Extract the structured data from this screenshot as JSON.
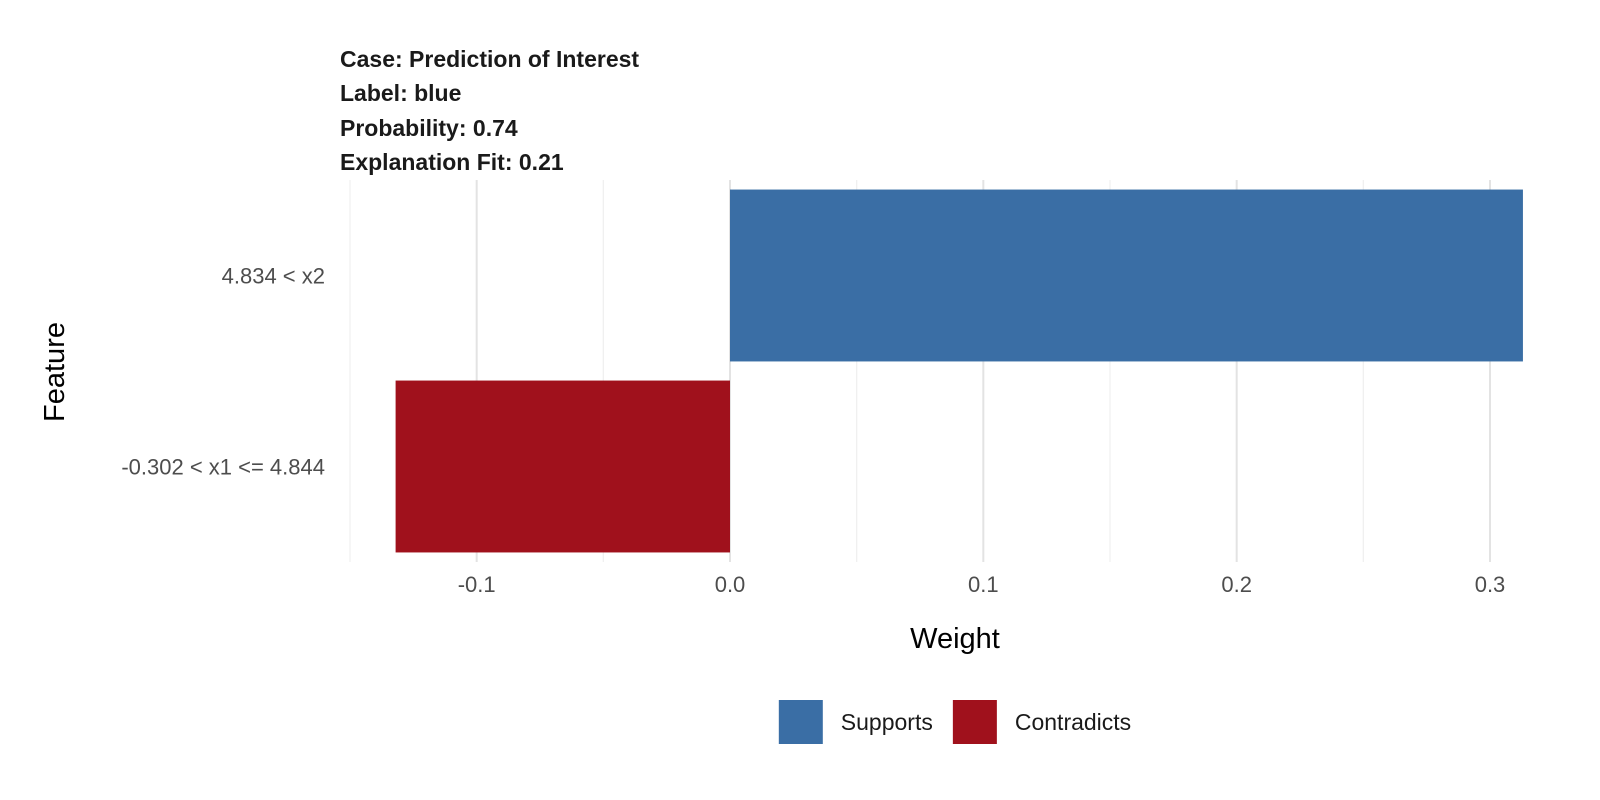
{
  "chart_data": {
    "type": "bar",
    "orientation": "horizontal",
    "title_lines": [
      "Case: Prediction of Interest",
      "Label: blue",
      "Probability: 0.74",
      "Explanation Fit: 0.21"
    ],
    "xlabel": "Weight",
    "ylabel": "Feature",
    "xlim": [
      -0.15,
      0.3
    ],
    "x_ticks": [
      -0.1,
      0.0,
      0.1,
      0.2,
      0.3
    ],
    "x_tick_labels": [
      "-0.1",
      "0.0",
      "0.1",
      "0.2",
      "0.3"
    ],
    "x_minor_ticks": [
      -0.15,
      -0.05,
      0.05,
      0.15,
      0.25
    ],
    "grid": true,
    "categories": [
      "4.834 < x2",
      "-0.302 < x1 <= 4.844"
    ],
    "values": [
      0.313,
      -0.132
    ],
    "bar_groups": [
      "Supports",
      "Contradicts"
    ],
    "legend": {
      "position": "bottom",
      "entries": [
        {
          "label": "Supports",
          "color": "#3A6EA5"
        },
        {
          "label": "Contradicts",
          "color": "#A0111C"
        }
      ]
    },
    "colors": {
      "Supports": "#3A6EA5",
      "Contradicts": "#A0111C"
    }
  }
}
